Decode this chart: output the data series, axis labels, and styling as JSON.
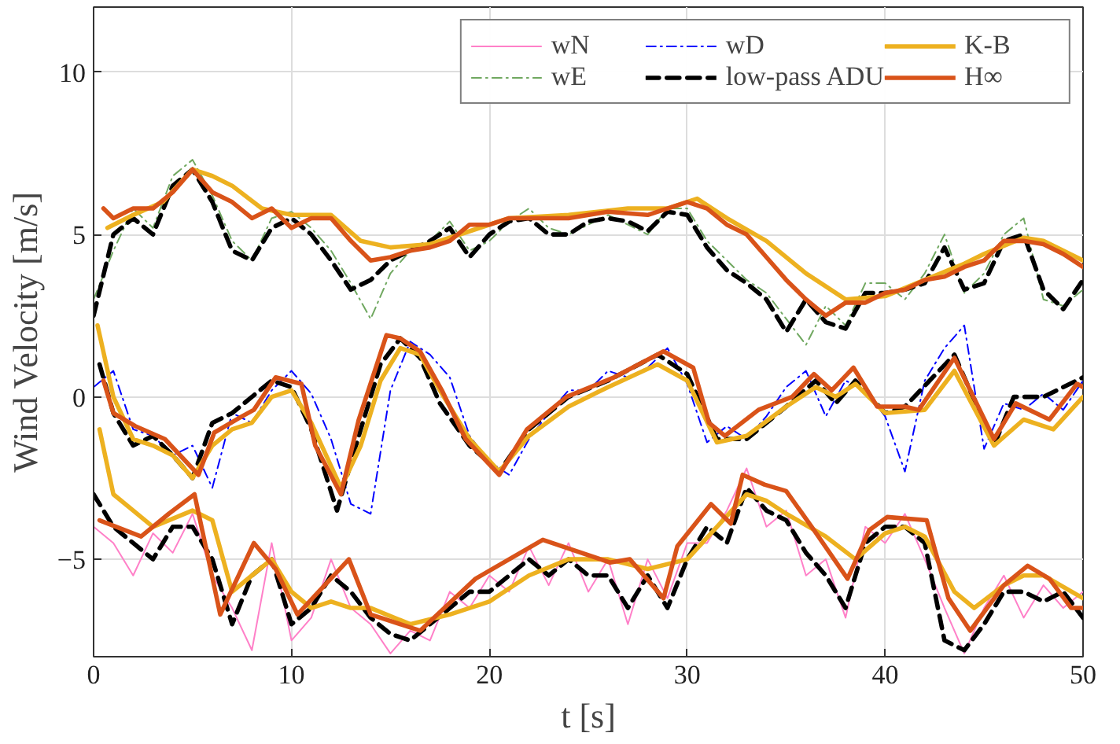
{
  "chart_data": {
    "type": "line",
    "xlabel": "t [s]",
    "ylabel": "Wind Velocity [m/s]",
    "xlim": [
      0,
      50
    ],
    "ylim": [
      -8,
      12
    ],
    "xticks": [
      0,
      10,
      20,
      30,
      40,
      50
    ],
    "yticks": [
      -5,
      0,
      5,
      10
    ],
    "grid": true,
    "legend": "top right",
    "x": [
      0,
      1,
      2,
      3,
      4,
      5,
      6,
      7,
      8,
      9,
      10,
      11,
      12,
      13,
      14,
      15,
      16,
      17,
      18,
      19,
      20,
      21,
      22,
      23,
      24,
      25,
      26,
      27,
      28,
      29,
      30,
      31,
      32,
      33,
      34,
      35,
      36,
      37,
      38,
      39,
      40,
      41,
      42,
      43,
      44,
      45,
      46,
      47,
      48,
      49,
      50
    ],
    "series": [
      {
        "name": "wN",
        "color": "#ff80c8",
        "line_style": "solid",
        "values": [
          -4.0,
          -4.5,
          -5.5,
          -4.2,
          -4.8,
          -3.6,
          -5.5,
          -6.5,
          -7.8,
          -4.5,
          -7.5,
          -6.8,
          -5.0,
          -6.5,
          -7.0,
          -7.9,
          -7.2,
          -7.5,
          -6.0,
          -6.5,
          -5.5,
          -6.0,
          -4.6,
          -5.8,
          -4.5,
          -6.0,
          -5.0,
          -7.0,
          -5.0,
          -6.2,
          -4.5,
          -4.5,
          -3.5,
          -2.2,
          -4.0,
          -3.5,
          -5.5,
          -5.0,
          -6.8,
          -4.0,
          -4.5,
          -3.6,
          -5.0,
          -6.5,
          -7.9,
          -6.5,
          -5.5,
          -6.8,
          -5.8,
          -6.5,
          -6.0
        ]
      },
      {
        "name": "wE",
        "color": "#70a860",
        "line_style": "dashdot",
        "values": [
          3.0,
          4.5,
          5.8,
          5.2,
          6.8,
          7.3,
          6.2,
          4.8,
          4.2,
          5.5,
          5.7,
          5.2,
          4.5,
          3.5,
          2.4,
          3.8,
          4.5,
          4.8,
          5.4,
          4.5,
          4.8,
          5.4,
          5.8,
          5.2,
          5.0,
          5.3,
          5.6,
          5.3,
          5.0,
          5.8,
          5.8,
          4.8,
          4.2,
          3.6,
          3.2,
          2.4,
          1.6,
          2.8,
          2.2,
          3.5,
          3.5,
          3.0,
          3.8,
          5.0,
          3.2,
          3.8,
          5.0,
          5.5,
          3.0,
          2.8,
          3.3
        ]
      },
      {
        "name": "wD",
        "color": "#0000ff",
        "line_style": "dashdot",
        "values": [
          0.3,
          0.8,
          -1.0,
          -1.2,
          -1.8,
          -1.5,
          -2.8,
          -0.5,
          -0.8,
          0.2,
          0.8,
          0.1,
          -1.3,
          -3.3,
          -3.6,
          0.2,
          1.7,
          1.3,
          0.6,
          -1.2,
          -2.0,
          -2.4,
          -1.3,
          -0.5,
          0.2,
          0.2,
          0.8,
          0.6,
          0.9,
          1.5,
          0.4,
          -1.4,
          -0.9,
          -1.3,
          -0.6,
          0.3,
          0.8,
          -0.6,
          0.5,
          0.2,
          -0.6,
          -2.3,
          0.5,
          1.5,
          2.2,
          -1.6,
          -0.2,
          -0.4,
          0.1,
          -0.4,
          0.5
        ]
      },
      {
        "name": "low-pass ADU",
        "color": "#000000",
        "line_style": "dashed",
        "values": [
          2.5,
          5.0,
          5.5,
          5.0,
          6.5,
          7.0,
          6.0,
          4.5,
          4.2,
          5.2,
          5.5,
          5.0,
          4.2,
          3.3,
          3.6,
          4.2,
          4.5,
          4.8,
          5.2,
          4.3,
          5.0,
          5.4,
          5.5,
          5.0,
          5.0,
          5.4,
          5.5,
          5.4,
          5.1,
          5.7,
          5.6,
          4.6,
          3.9,
          3.5,
          3.0,
          2.0,
          3.0,
          2.3,
          2.1,
          3.2,
          3.2,
          3.3,
          3.5,
          4.6,
          3.3,
          3.5,
          4.8,
          5.0,
          3.3,
          2.7,
          3.6
        ]
      },
      {
        "color": "#000000",
        "line_style": "dashed",
        "x": [
          0.3,
          1,
          2,
          3,
          4,
          5,
          6,
          7,
          8,
          9,
          10,
          11,
          12.3,
          13.5,
          14.5,
          15.5,
          16.5,
          17.5,
          19,
          20.5,
          22,
          24,
          26,
          28.5,
          30,
          31.5,
          33,
          35,
          36.5,
          37.5,
          38.5,
          40,
          41,
          43.5,
          45.5,
          46.5,
          48,
          50
        ],
        "values": [
          1,
          -0.5,
          -1.5,
          -1.2,
          -1.8,
          -2.5,
          -0.8,
          -0.5,
          0,
          0.5,
          0.3,
          -1,
          -3.5,
          -1,
          1,
          1.8,
          1.2,
          -0.2,
          -1.5,
          -2.3,
          -1,
          0,
          0.5,
          1.3,
          0.7,
          -1.3,
          -1.3,
          -0.3,
          0.5,
          -0.2,
          0.5,
          -0.5,
          -0.3,
          1.3,
          -1.5,
          0,
          0,
          0.6
        ]
      },
      {
        "color": "#000000",
        "line_style": "dashed",
        "values": [
          -3.0,
          -4,
          -4.5,
          -5,
          -4,
          -4,
          -5,
          -7,
          -5.5,
          -5,
          -7,
          -6.5,
          -5.5,
          -6,
          -6.8,
          -7.3,
          -7.5,
          -7,
          -6.5,
          -6,
          -6,
          -5.5,
          -5,
          -5.5,
          -5,
          -5.5,
          -5.5,
          -6.5,
          -5.5,
          -6.5,
          -5,
          -4,
          -4.5,
          -2.8,
          -3.5,
          -3.8,
          -4.8,
          -5.5,
          -6.5,
          -4.5,
          -4,
          -4,
          -4.5,
          -7.5,
          -7.8,
          -7,
          -6,
          -6,
          -6.3,
          -6,
          -6.8
        ]
      },
      {
        "name": "K-B",
        "color": "#edb120",
        "line_style": "solid",
        "x": [
          0.7,
          2,
          3.5,
          5,
          6,
          7,
          8.5,
          10,
          12,
          13.5,
          15,
          17,
          19,
          21,
          24,
          27,
          29,
          30.5,
          32,
          34,
          36,
          38,
          40,
          42,
          44,
          45,
          47,
          48,
          50
        ],
        "values": [
          5.2,
          5.6,
          6.0,
          7.0,
          6.8,
          6.5,
          5.8,
          5.6,
          5.6,
          4.8,
          4.6,
          4.7,
          5.1,
          5.5,
          5.6,
          5.8,
          5.8,
          6.1,
          5.5,
          4.8,
          3.8,
          3.0,
          3.1,
          3.6,
          4.1,
          4.4,
          4.9,
          4.8,
          4.2
        ]
      },
      {
        "color": "#edb120",
        "line_style": "solid",
        "x": [
          0.2,
          1,
          2,
          3,
          4,
          5,
          6,
          7,
          8,
          9,
          10,
          11,
          12.5,
          13.5,
          14.5,
          15.5,
          16.5,
          17.5,
          19,
          20.5,
          22,
          24,
          26,
          28.5,
          30,
          31.5,
          33,
          35,
          36.5,
          37.5,
          38.5,
          40,
          42,
          43.5,
          45.5,
          47,
          48.5,
          50
        ],
        "values": [
          2.2,
          0,
          -1.3,
          -1.5,
          -1.8,
          -2.5,
          -1.5,
          -1,
          -0.8,
          0,
          0.2,
          -0.8,
          -2.8,
          -1.5,
          0.5,
          1.5,
          1.3,
          0.2,
          -1.3,
          -2.3,
          -1.2,
          -0.3,
          0.3,
          1.0,
          0.5,
          -1.4,
          -1.2,
          -0.3,
          0.3,
          0,
          0.4,
          -0.5,
          -0.4,
          0.8,
          -1.5,
          -0.7,
          -1,
          0
        ]
      },
      {
        "color": "#edb120",
        "line_style": "solid",
        "x": [
          0.3,
          1,
          2,
          3,
          5,
          6,
          7,
          8,
          9,
          10,
          11,
          12,
          13,
          14,
          16,
          18,
          20,
          22,
          24,
          26,
          28,
          30,
          31.5,
          33,
          34,
          35,
          37,
          38.5,
          40,
          41,
          42,
          43.5,
          44.5,
          46,
          47,
          48,
          50
        ],
        "values": [
          -1.0,
          -3,
          -3.5,
          -4,
          -3.5,
          -3.8,
          -6,
          -5.5,
          -5,
          -6,
          -6.5,
          -6.3,
          -6.5,
          -6.5,
          -7,
          -6.7,
          -6.3,
          -5.5,
          -5.0,
          -5,
          -5.3,
          -5,
          -4,
          -3,
          -3.2,
          -3.6,
          -4.3,
          -5.0,
          -4.2,
          -4.0,
          -4.3,
          -6.0,
          -6.5,
          -5.8,
          -5.5,
          -5.5,
          -6.2
        ]
      },
      {
        "name": "H∞",
        "color": "#d95319",
        "line_style": "solid",
        "x": [
          0.5,
          1,
          2,
          3,
          4,
          5,
          6,
          7,
          8,
          9,
          10,
          11,
          12,
          13,
          14,
          15,
          16,
          17,
          18,
          19,
          20,
          21,
          22,
          24,
          26,
          28,
          30,
          31,
          32,
          33,
          34,
          35,
          36,
          37,
          38,
          39,
          40,
          41,
          42,
          43,
          44,
          45,
          46,
          47,
          48,
          49,
          50
        ],
        "values": [
          5.8,
          5.5,
          5.8,
          5.8,
          6.3,
          7.0,
          6.3,
          6.0,
          5.5,
          5.8,
          5.2,
          5.5,
          5.5,
          4.8,
          4.2,
          4.3,
          4.5,
          4.6,
          4.8,
          5.3,
          5.3,
          5.5,
          5.5,
          5.5,
          5.7,
          5.6,
          6.0,
          5.8,
          5.3,
          5.0,
          4.3,
          3.6,
          3.0,
          2.5,
          2.9,
          2.9,
          3.2,
          3.3,
          3.6,
          3.7,
          4.0,
          4.2,
          4.8,
          4.8,
          4.7,
          4.4,
          4.0
        ]
      },
      {
        "color": "#d95319",
        "line_style": "solid",
        "x": [
          0.5,
          1,
          2.1,
          3.6,
          5.3,
          6.1,
          7.5,
          8.1,
          9.2,
          10.5,
          11.2,
          12.5,
          13.4,
          14.8,
          15.5,
          16.5,
          17.6,
          18.8,
          20.5,
          21.9,
          23.9,
          26.3,
          28.8,
          30.3,
          31.1,
          31.9,
          33.6,
          35.3,
          36.4,
          37.3,
          38.4,
          39.6,
          41,
          41.7,
          43.5,
          45.5,
          46.6,
          48.3,
          49.7,
          50
        ],
        "values": [
          0.5,
          -0.5,
          -0.9,
          -1.3,
          -2.4,
          -1.1,
          -0.6,
          -0.4,
          0.6,
          0.4,
          -1.5,
          -3.0,
          -0.7,
          1.9,
          1.8,
          1.4,
          0.2,
          -1.3,
          -2.4,
          -1.0,
          0,
          0.6,
          1.4,
          0.9,
          -0.8,
          -1.2,
          -0.4,
          0,
          0.7,
          0.2,
          0.9,
          -0.3,
          -0.3,
          -0.4,
          1.2,
          -1.3,
          -0.2,
          -0.7,
          0.4,
          0.3
        ]
      },
      {
        "color": "#d95319",
        "line_style": "solid",
        "x": [
          0.3,
          2.4,
          3.8,
          5.1,
          6.4,
          8.1,
          9.2,
          10.3,
          12.9,
          14,
          16.5,
          19.3,
          22.7,
          26.1,
          27.1,
          28.8,
          29.5,
          31.2,
          32.2,
          32.8,
          33.9,
          35,
          36.4,
          38.1,
          39.2,
          40.1,
          42.1,
          43.2,
          44.3,
          46,
          47.2,
          48.3,
          49.4,
          50
        ],
        "values": [
          -3.8,
          -4.3,
          -3.6,
          -3.0,
          -6.7,
          -4.5,
          -5.3,
          -6.7,
          -5.0,
          -6.7,
          -7.2,
          -5.6,
          -4.4,
          -5.1,
          -5.0,
          -6.2,
          -4.6,
          -3.3,
          -3.9,
          -2.4,
          -2.7,
          -2.9,
          -4.1,
          -5.6,
          -4.1,
          -3.7,
          -3.8,
          -6.2,
          -7.2,
          -5.8,
          -5.2,
          -5.6,
          -6.5,
          -6.5
        ]
      }
    ]
  }
}
